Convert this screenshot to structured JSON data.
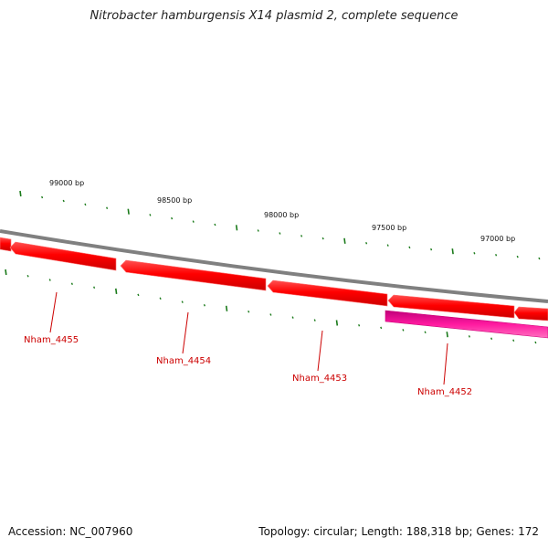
{
  "title": "Nitrobacter hamburgensis X14 plasmid 2, complete sequence",
  "footer": {
    "accession": "Accession: NC_007960",
    "info": "Topology: circular; Length: 188,318 bp; Genes: 172"
  },
  "scale_labels": [
    "99000 bp",
    "98500 bp",
    "98000 bp",
    "97500 bp",
    "97000 bp"
  ],
  "genes": [
    {
      "name": "Nham_4455",
      "strand": "forward",
      "color": "#ff0000"
    },
    {
      "name": "Nham_4454",
      "strand": "forward",
      "color": "#ff0000"
    },
    {
      "name": "Nham_4453",
      "strand": "forward",
      "color": "#ff0000"
    },
    {
      "name": "Nham_4452",
      "strand": "reverse",
      "color": "#ff1493"
    }
  ],
  "colors": {
    "backbone": "#808080",
    "tick": "#1a7a1a",
    "forward_gene": "#ff0000",
    "reverse_gene": "#ff1493",
    "label": "#cc0000"
  }
}
